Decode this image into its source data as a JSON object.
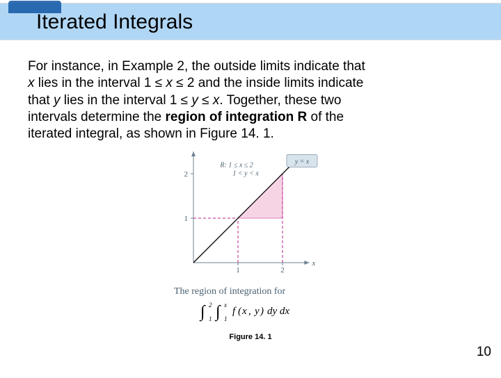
{
  "title": "Iterated Integrals",
  "paragraph": {
    "l1": "For instance, in Example 2, the outside limits indicate that",
    "l2a": "x",
    "l2b": " lies in the interval 1 ≤ ",
    "l2c": "x",
    "l2d": " ≤ 2 and the inside limits indicate",
    "l3a": "that ",
    "l3b": "y",
    "l3c": " lies in the interval 1 ≤ ",
    "l3d": "y",
    "l3e": " ≤ ",
    "l3f": "x",
    "l3g": ". Together, these two",
    "l4a": "intervals determine the ",
    "l4b": "region of integration R",
    "l4c": " of the",
    "l5": "iterated integral, as shown in Figure 14. 1."
  },
  "chart": {
    "type": "line",
    "axis_label_x": "x",
    "axis_label_y": "y",
    "line_label": "y = x",
    "region_label_1": "R: 1 ≤ x ≤ 2",
    "region_label_2": "     1 < y < x",
    "xtick_labels": [
      "1",
      "2"
    ],
    "ytick_labels": [
      "1",
      "2"
    ],
    "xlim": [
      0,
      2.6
    ],
    "ylim": [
      0,
      2.6
    ],
    "line": {
      "x1": 0,
      "y1": 0,
      "x2": 2.4,
      "y2": 2.4
    },
    "region_vertices": [
      [
        1,
        1
      ],
      [
        2,
        1
      ],
      [
        2,
        2
      ]
    ],
    "dash_lines": [
      {
        "x1": 1,
        "y1": 0,
        "x2": 1,
        "y2": 1
      },
      {
        "x1": 2,
        "y1": 0,
        "x2": 2,
        "y2": 2
      },
      {
        "x1": 0,
        "y1": 1,
        "x2": 1,
        "y2": 1
      }
    ],
    "colors": {
      "axis": "#6d8090",
      "axis_text": "#4a6172",
      "line": "#000000",
      "dash": "#b71c8c",
      "region_fill": "#f7d4e4",
      "region_stroke": "#b71c8c",
      "label_box_fill": "#d8e4ec",
      "label_box_stroke": "#6d8090"
    },
    "fontsize_axis": 11,
    "fontsize_label": 10
  },
  "caption": "The region of integration for",
  "integral": "∫₁² ∫₁ˣ f(x, y) dy dx",
  "figure_label": "Figure 14. 1",
  "page_number": "10"
}
